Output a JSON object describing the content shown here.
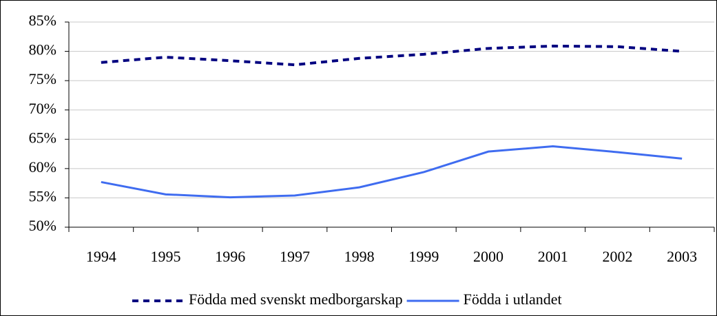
{
  "chart_data": {
    "type": "line",
    "categories": [
      "1994",
      "1995",
      "1996",
      "1997",
      "1998",
      "1999",
      "2000",
      "2001",
      "2002",
      "2003"
    ],
    "series": [
      {
        "name": "Födda med svenskt medborgarskap",
        "color": "#000080",
        "dash": true,
        "values": [
          78.1,
          79.0,
          78.4,
          77.7,
          78.8,
          79.5,
          80.5,
          80.9,
          80.8,
          80.0
        ]
      },
      {
        "name": "Födda i utlandet",
        "color": "#3f6cf0",
        "dash": false,
        "values": [
          57.7,
          55.6,
          55.1,
          55.4,
          56.8,
          59.4,
          62.9,
          63.8,
          62.8,
          61.7
        ]
      }
    ],
    "ylim": [
      50,
      85
    ],
    "yticks": [
      {
        "value": 50,
        "label": "50%"
      },
      {
        "value": 55,
        "label": "55%"
      },
      {
        "value": 60,
        "label": "60%"
      },
      {
        "value": 65,
        "label": "65%"
      },
      {
        "value": 70,
        "label": "70%"
      },
      {
        "value": 75,
        "label": "75%"
      },
      {
        "value": 80,
        "label": "80%"
      },
      {
        "value": 85,
        "label": "85%"
      }
    ],
    "grid": true,
    "legend": "bottom"
  }
}
